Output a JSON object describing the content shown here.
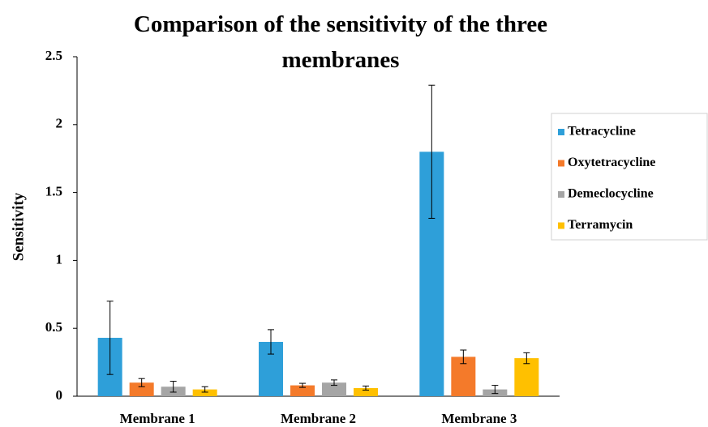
{
  "chart_data": {
    "type": "bar",
    "title": "Comparison of the sensitivity of the three membranes",
    "y_label": "Sensitivity",
    "categories": [
      "Membrane 1",
      "Membrane 2",
      "Membrane 3"
    ],
    "series": [
      {
        "name": "Tetracycline",
        "color": "#2e9fd9",
        "values": [
          0.43,
          0.4,
          1.8
        ],
        "errors": [
          0.27,
          0.09,
          0.49
        ]
      },
      {
        "name": "Oxytetracycline",
        "color": "#f47a2a",
        "values": [
          0.1,
          0.08,
          0.29
        ],
        "errors": [
          0.03,
          0.015,
          0.05
        ]
      },
      {
        "name": "Demeclocycline",
        "color": "#a5a5a5",
        "values": [
          0.07,
          0.1,
          0.05
        ],
        "errors": [
          0.04,
          0.02,
          0.03
        ]
      },
      {
        "name": "Terramycin",
        "color": "#ffc000",
        "values": [
          0.05,
          0.06,
          0.28
        ],
        "errors": [
          0.02,
          0.015,
          0.04
        ]
      }
    ],
    "ylim": [
      0,
      2.5
    ],
    "yticks": [
      0,
      0.5,
      1,
      1.5,
      2,
      2.5
    ],
    "grid": false,
    "legend": "right"
  }
}
